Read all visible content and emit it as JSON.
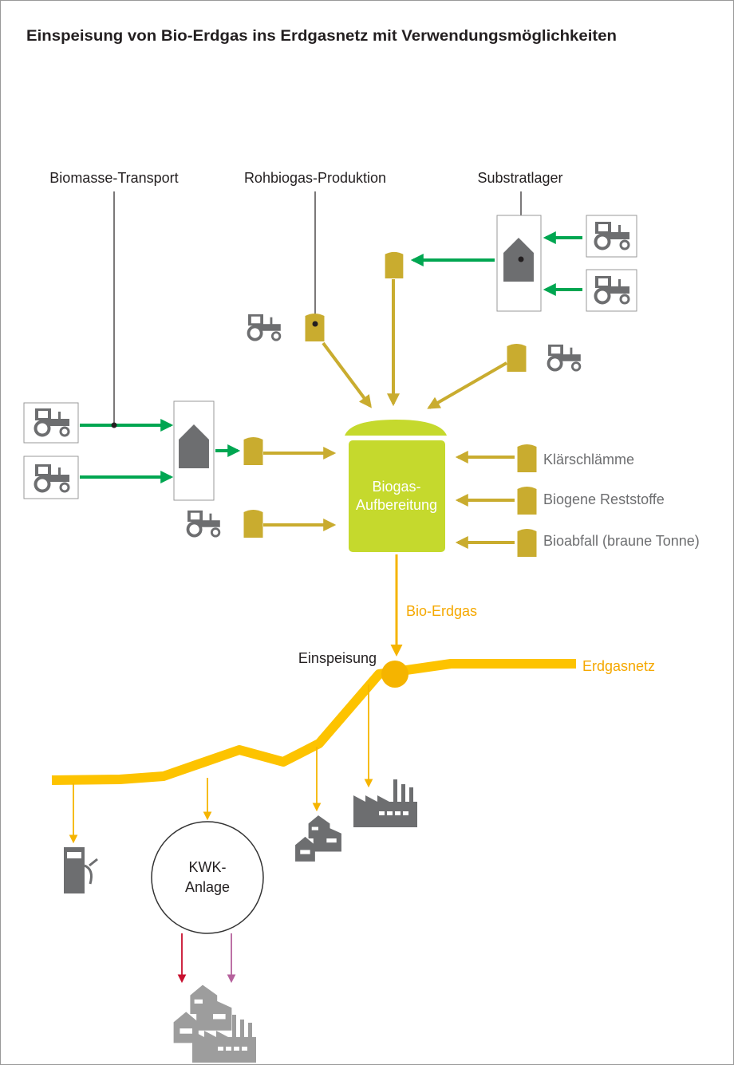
{
  "header": {
    "title": "Einspeisung von Bio-Erdgas ins Erdgasnetz mit Verwendungsmöglichkeiten"
  },
  "labels": {
    "biomasse_transport": "Biomasse-Transport",
    "rohbiogas_produktion": "Rohbiogas-Produktion",
    "substratlager": "Substratlager",
    "aufbereitung": [
      "Biogas-",
      "Aufbereitung"
    ],
    "inputs": [
      "Klärschlämme",
      "Biogene Reststoffe",
      "Bioabfall (braune Tonne)"
    ],
    "bio_erdgas": "Bio-Erdgas",
    "einspeisung": "Einspeisung",
    "erdgasnetz": "Erdgasnetz",
    "kwk": [
      "KWK-",
      "Anlage"
    ]
  }
}
